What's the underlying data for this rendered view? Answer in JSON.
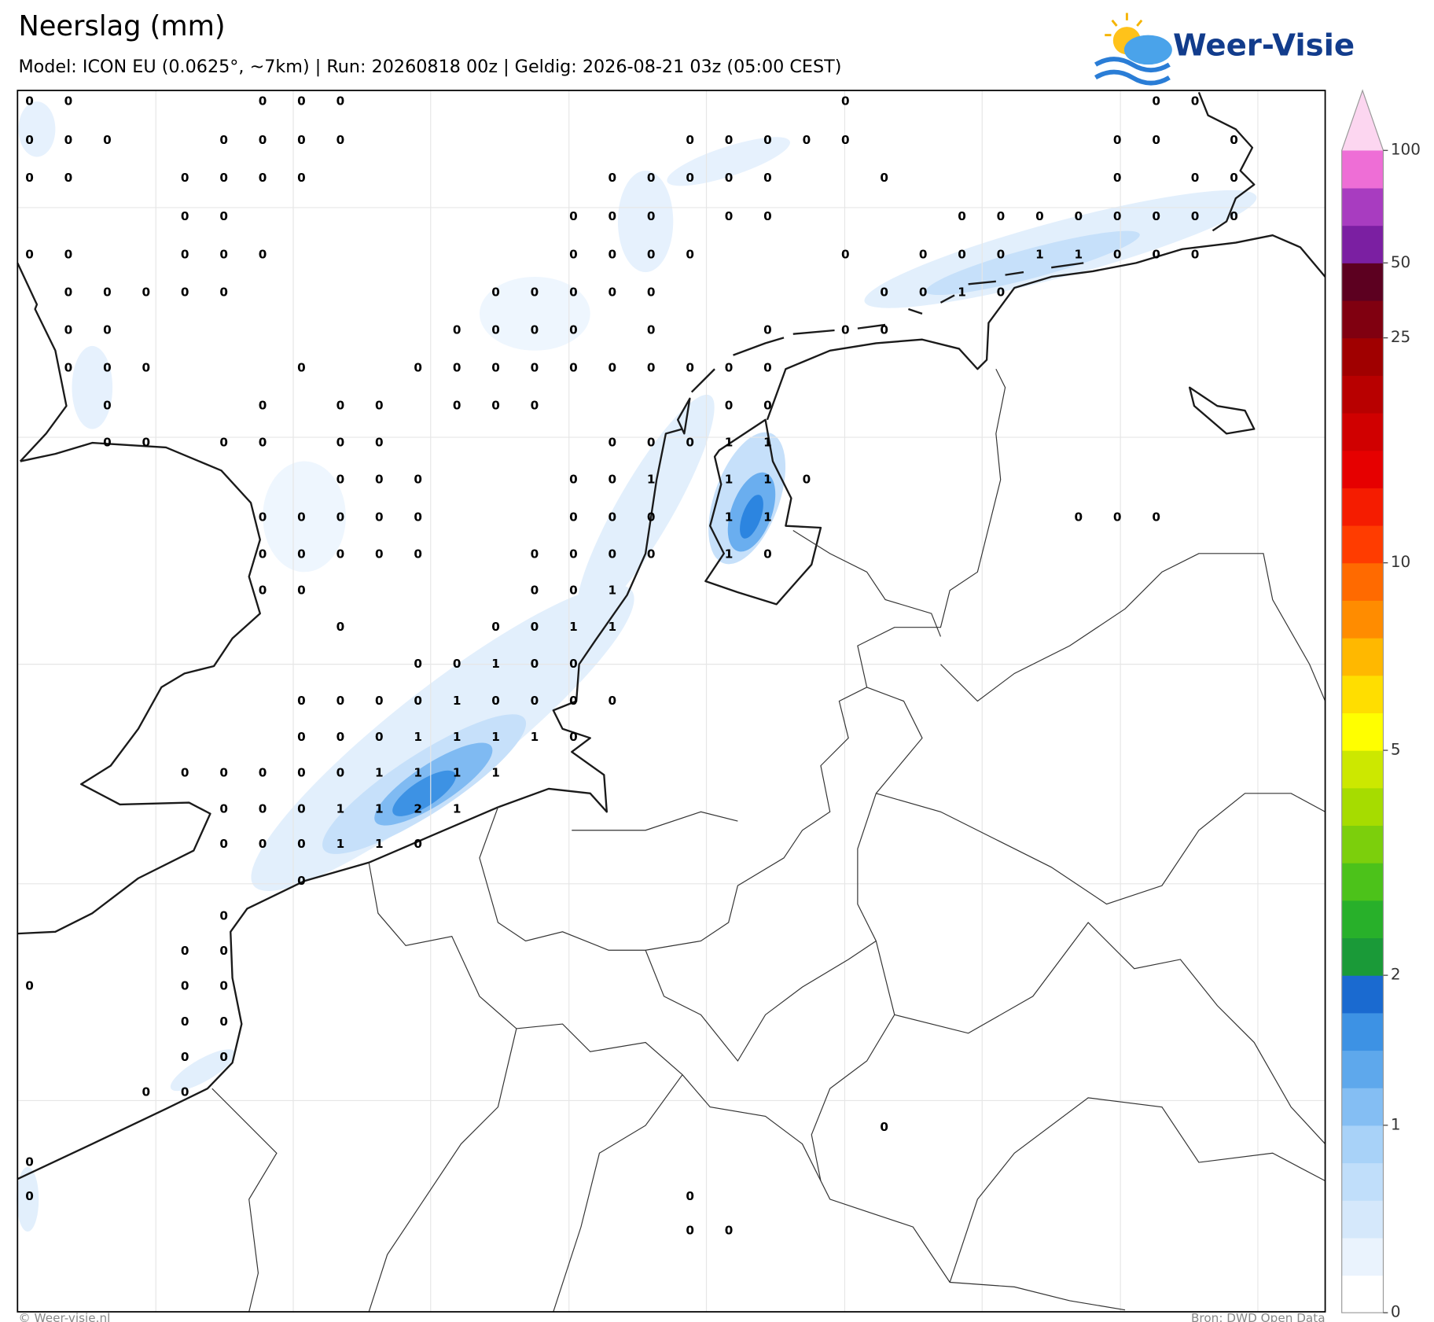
{
  "header": {
    "title": "Neerslag (mm)",
    "subtitle": "Model: ICON EU (0.0625°, ~7km)  |  Run: 20260818 00z  |  Geldig: 2026-08-21 03z (05:00 CEST)"
  },
  "logo": {
    "text": "Weer-Visie"
  },
  "map": {
    "labels": [
      [
        0,
        0,
        null,
        null,
        null,
        null,
        0,
        0,
        0,
        null,
        null,
        null,
        null,
        null,
        null,
        null,
        null,
        null,
        null,
        null,
        null,
        0,
        null,
        null,
        null,
        null,
        null,
        null,
        null,
        0,
        0,
        null
      ],
      [
        0,
        0,
        0,
        null,
        null,
        0,
        0,
        0,
        0,
        null,
        null,
        null,
        null,
        null,
        null,
        null,
        null,
        0,
        0,
        0,
        0,
        0,
        null,
        null,
        null,
        null,
        null,
        null,
        0,
        0,
        null,
        0
      ],
      [
        0,
        0,
        null,
        null,
        0,
        0,
        0,
        0,
        null,
        null,
        null,
        null,
        null,
        null,
        null,
        0,
        0,
        0,
        0,
        0,
        null,
        null,
        0,
        null,
        null,
        null,
        null,
        null,
        0,
        null,
        0,
        0
      ],
      [
        null,
        null,
        null,
        null,
        0,
        0,
        null,
        null,
        null,
        null,
        null,
        null,
        null,
        null,
        0,
        0,
        0,
        null,
        0,
        0,
        null,
        null,
        null,
        null,
        0,
        0,
        0,
        0,
        0,
        0,
        0,
        0
      ],
      [
        0,
        0,
        null,
        null,
        0,
        0,
        0,
        null,
        null,
        null,
        null,
        null,
        null,
        null,
        0,
        0,
        0,
        0,
        null,
        null,
        null,
        0,
        null,
        0,
        0,
        0,
        1,
        1,
        0,
        0,
        0,
        null
      ],
      [
        null,
        0,
        0,
        0,
        0,
        0,
        null,
        null,
        null,
        null,
        null,
        null,
        0,
        0,
        0,
        0,
        0,
        null,
        null,
        null,
        null,
        null,
        0,
        0,
        1,
        0,
        null,
        null,
        null,
        null,
        null,
        null
      ],
      [
        null,
        0,
        0,
        null,
        null,
        null,
        null,
        null,
        null,
        null,
        null,
        0,
        0,
        0,
        0,
        null,
        0,
        null,
        null,
        0,
        null,
        0,
        0,
        null,
        null,
        null,
        null,
        null,
        null,
        null,
        null,
        null
      ],
      [
        null,
        0,
        0,
        0,
        null,
        null,
        null,
        0,
        null,
        null,
        0,
        0,
        0,
        0,
        0,
        0,
        0,
        0,
        0,
        0,
        null,
        null,
        null,
        null,
        null,
        null,
        null,
        null,
        null,
        null,
        null,
        null
      ],
      [
        null,
        null,
        0,
        null,
        null,
        null,
        0,
        null,
        0,
        0,
        null,
        0,
        0,
        0,
        null,
        null,
        null,
        null,
        0,
        0,
        null,
        null,
        null,
        null,
        null,
        null,
        null,
        null,
        null,
        null,
        null,
        null
      ],
      [
        null,
        null,
        0,
        0,
        null,
        0,
        0,
        null,
        0,
        0,
        null,
        null,
        null,
        null,
        null,
        0,
        0,
        0,
        1,
        1,
        null,
        null,
        null,
        null,
        null,
        null,
        null,
        null,
        null,
        null,
        null,
        null
      ],
      [
        null,
        null,
        null,
        null,
        null,
        null,
        null,
        null,
        0,
        0,
        0,
        null,
        null,
        null,
        0,
        0,
        1,
        null,
        1,
        1,
        0,
        null,
        null,
        null,
        null,
        null,
        null,
        null,
        null,
        null,
        null,
        null
      ],
      [
        null,
        null,
        null,
        null,
        null,
        null,
        0,
        0,
        0,
        0,
        0,
        null,
        null,
        null,
        0,
        0,
        0,
        null,
        1,
        1,
        null,
        null,
        null,
        null,
        null,
        null,
        null,
        0,
        0,
        0,
        null,
        null
      ],
      [
        null,
        null,
        null,
        null,
        null,
        null,
        0,
        0,
        0,
        0,
        0,
        null,
        null,
        0,
        0,
        0,
        0,
        null,
        1,
        0,
        null,
        null,
        null,
        null,
        null,
        null,
        null,
        null,
        null,
        null,
        null,
        null
      ],
      [
        null,
        null,
        null,
        null,
        null,
        null,
        0,
        0,
        null,
        null,
        null,
        null,
        null,
        0,
        0,
        1,
        null,
        null,
        null,
        null,
        null,
        null,
        null,
        null,
        null,
        null,
        null,
        null,
        null,
        null,
        null,
        null
      ],
      [
        null,
        null,
        null,
        null,
        null,
        null,
        null,
        null,
        0,
        null,
        null,
        null,
        0,
        0,
        1,
        1,
        null,
        null,
        null,
        null,
        null,
        null,
        null,
        null,
        null,
        null,
        null,
        null,
        null,
        null,
        null,
        null
      ],
      [
        null,
        null,
        null,
        null,
        null,
        null,
        null,
        null,
        null,
        null,
        0,
        0,
        1,
        0,
        0,
        null,
        null,
        null,
        null,
        null,
        null,
        null,
        null,
        null,
        null,
        null,
        null,
        null,
        null,
        null,
        null,
        null
      ],
      [
        null,
        null,
        null,
        null,
        null,
        null,
        null,
        0,
        0,
        0,
        0,
        1,
        0,
        0,
        0,
        0,
        null,
        null,
        null,
        null,
        null,
        null,
        null,
        null,
        null,
        null,
        null,
        null,
        null,
        null,
        null,
        null
      ],
      [
        null,
        null,
        null,
        null,
        null,
        null,
        null,
        0,
        0,
        0,
        1,
        1,
        1,
        1,
        0,
        null,
        null,
        null,
        null,
        null,
        null,
        null,
        null,
        null,
        null,
        null,
        null,
        null,
        null,
        null,
        null,
        null
      ],
      [
        null,
        null,
        null,
        null,
        0,
        0,
        0,
        0,
        0,
        1,
        1,
        1,
        1,
        null,
        null,
        null,
        null,
        null,
        null,
        null,
        null,
        null,
        null,
        null,
        null,
        null,
        null,
        null,
        null,
        null,
        null,
        null
      ],
      [
        null,
        null,
        null,
        null,
        null,
        0,
        0,
        0,
        1,
        1,
        2,
        1,
        null,
        null,
        null,
        null,
        null,
        null,
        null,
        null,
        null,
        null,
        null,
        null,
        null,
        null,
        null,
        null,
        null,
        null,
        null,
        null
      ],
      [
        null,
        null,
        null,
        null,
        null,
        0,
        0,
        0,
        1,
        1,
        0,
        null,
        null,
        null,
        null,
        null,
        null,
        null,
        null,
        null,
        null,
        null,
        null,
        null,
        null,
        null,
        null,
        null,
        null,
        null,
        null,
        null
      ],
      [
        null,
        null,
        null,
        null,
        null,
        null,
        null,
        0,
        null,
        null,
        null,
        null,
        null,
        null,
        null,
        null,
        null,
        null,
        null,
        null,
        null,
        null,
        null,
        null,
        null,
        null,
        null,
        null,
        null,
        null,
        null,
        null
      ],
      [
        null,
        null,
        null,
        null,
        null,
        0,
        null,
        null,
        null,
        null,
        null,
        null,
        null,
        null,
        null,
        null,
        null,
        null,
        null,
        null,
        null,
        null,
        null,
        null,
        null,
        null,
        null,
        null,
        null,
        null,
        null,
        null
      ],
      [
        null,
        null,
        null,
        null,
        0,
        0,
        null,
        null,
        null,
        null,
        null,
        null,
        null,
        null,
        null,
        null,
        null,
        null,
        null,
        null,
        null,
        null,
        null,
        null,
        null,
        null,
        null,
        null,
        null,
        null,
        null,
        null
      ],
      [
        0,
        null,
        null,
        null,
        0,
        0,
        null,
        null,
        null,
        null,
        null,
        null,
        null,
        null,
        null,
        null,
        null,
        null,
        null,
        null,
        null,
        null,
        null,
        null,
        null,
        null,
        null,
        null,
        null,
        null,
        null,
        null
      ],
      [
        null,
        null,
        null,
        null,
        0,
        0,
        null,
        null,
        null,
        null,
        null,
        null,
        null,
        null,
        null,
        null,
        null,
        null,
        null,
        null,
        null,
        null,
        null,
        null,
        null,
        null,
        null,
        null,
        null,
        null,
        null,
        null
      ],
      [
        null,
        null,
        null,
        null,
        0,
        0,
        null,
        null,
        null,
        null,
        null,
        null,
        null,
        null,
        null,
        null,
        null,
        null,
        null,
        null,
        null,
        null,
        null,
        null,
        null,
        null,
        null,
        null,
        null,
        null,
        null,
        null
      ],
      [
        null,
        null,
        null,
        0,
        0,
        null,
        null,
        null,
        null,
        null,
        null,
        null,
        null,
        null,
        null,
        null,
        null,
        null,
        null,
        null,
        null,
        null,
        null,
        null,
        null,
        null,
        null,
        null,
        null,
        null,
        null,
        null
      ],
      [
        null,
        null,
        null,
        null,
        null,
        null,
        null,
        null,
        null,
        null,
        null,
        null,
        null,
        null,
        null,
        null,
        null,
        null,
        null,
        null,
        null,
        null,
        0,
        null,
        null,
        null,
        null,
        null,
        null,
        null,
        null,
        null
      ],
      [
        0,
        null,
        null,
        null,
        null,
        null,
        null,
        null,
        null,
        null,
        null,
        null,
        null,
        null,
        null,
        null,
        null,
        null,
        null,
        null,
        null,
        null,
        null,
        null,
        null,
        null,
        null,
        null,
        null,
        null,
        null,
        null
      ],
      [
        0,
        null,
        null,
        null,
        null,
        null,
        null,
        null,
        null,
        null,
        null,
        null,
        null,
        null,
        null,
        null,
        null,
        0,
        null,
        null,
        null,
        null,
        null,
        null,
        null,
        null,
        null,
        null,
        null,
        null,
        null,
        null
      ],
      [
        null,
        null,
        null,
        null,
        null,
        null,
        null,
        null,
        null,
        null,
        null,
        null,
        null,
        null,
        null,
        null,
        null,
        0,
        0,
        null,
        null,
        null,
        null,
        null,
        null,
        null,
        null,
        null,
        null,
        null,
        null,
        null
      ]
    ]
  },
  "colorbar": {
    "bounds": [
      0,
      0.2,
      0.4,
      0.6,
      0.8,
      1,
      1.25,
      1.5,
      1.75,
      2,
      2.5,
      3,
      3.5,
      4,
      4.5,
      5,
      6,
      7,
      8,
      9,
      10,
      12.5,
      15,
      17.5,
      20,
      22.5,
      25,
      37.5,
      50,
      60,
      80,
      100
    ],
    "colors": [
      "#ffffff",
      "#eaf3fd",
      "#d5e8fb",
      "#c0defa",
      "#a8d2f8",
      "#84bef3",
      "#5ea8ec",
      "#3d92e4",
      "#1a6ad0",
      "#1a9a38",
      "#28b02a",
      "#4cc21a",
      "#7ccf0c",
      "#a6dc00",
      "#cce800",
      "#ffff00",
      "#ffde00",
      "#ffb800",
      "#ff8c00",
      "#ff6a00",
      "#ff3c00",
      "#f51c00",
      "#e60000",
      "#d00000",
      "#b80000",
      "#a00000",
      "#800010",
      "#5c0020",
      "#7b1fa2",
      "#a83cc0",
      "#ee6ed6"
    ],
    "extend_color": "#fcd6f0",
    "ticks": [
      0,
      1,
      2,
      5,
      10,
      25,
      50,
      100
    ]
  },
  "footer": {
    "left": "© Weer-visie.nl",
    "right": "Bron: DWD Open Data"
  }
}
